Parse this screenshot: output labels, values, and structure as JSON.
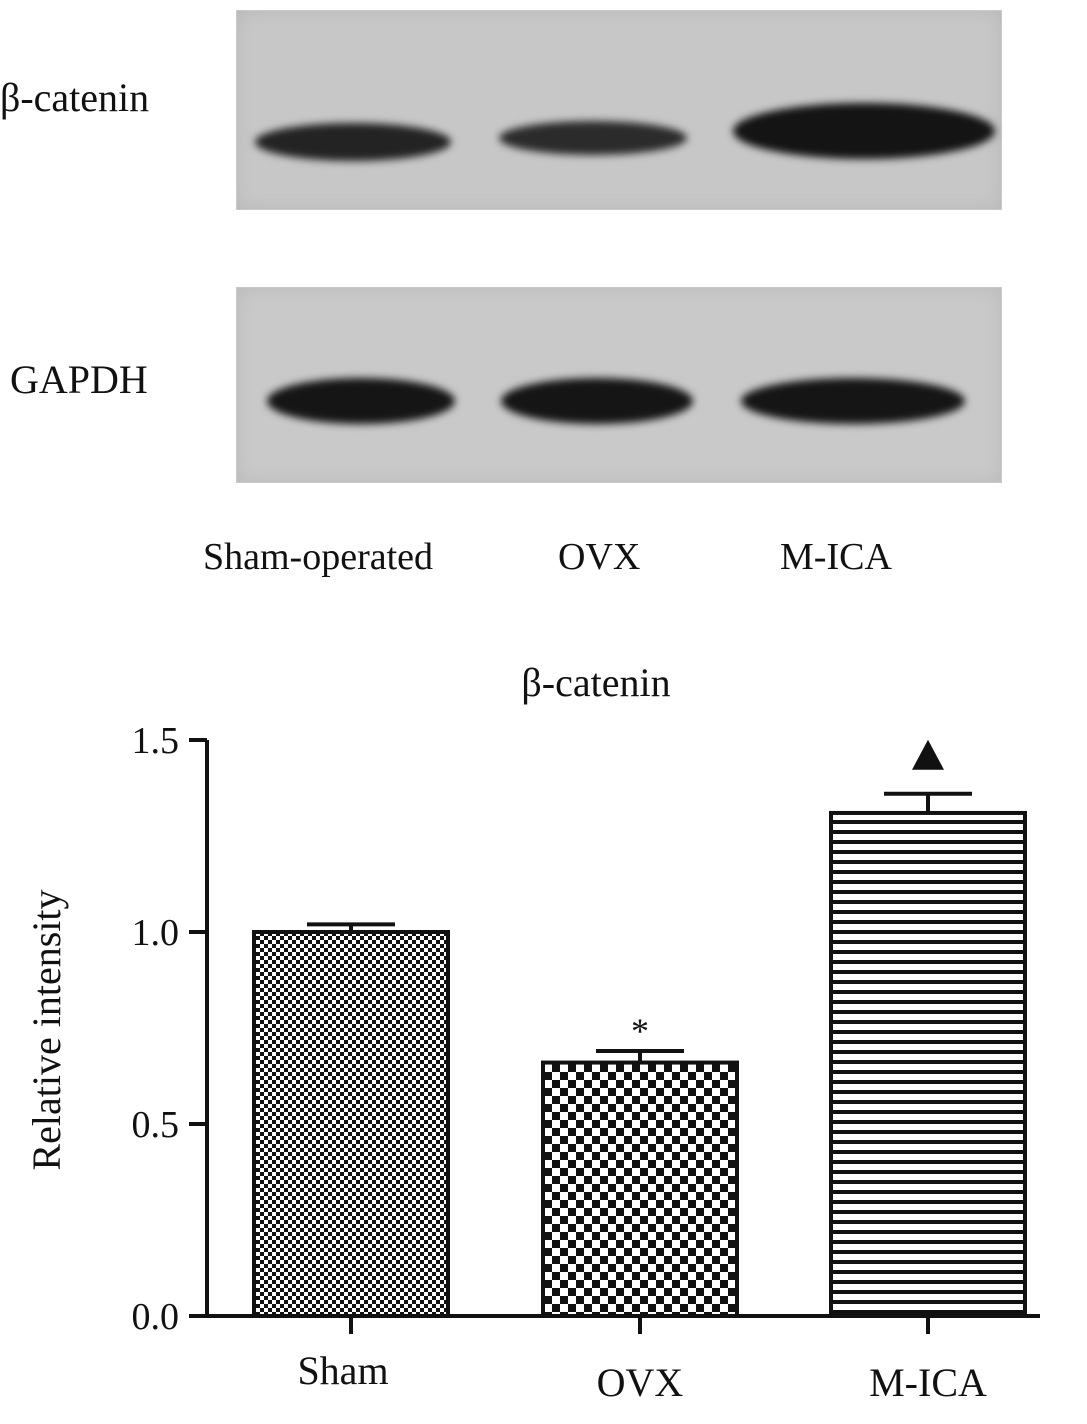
{
  "western_blot": {
    "rows": [
      {
        "label": "β-catenin",
        "band_intensity": [
          0.55,
          0.5,
          0.85
        ]
      },
      {
        "label": "GAPDH",
        "band_intensity": [
          0.9,
          0.9,
          0.9
        ]
      }
    ],
    "lanes": [
      "Sham-operated",
      "OVX",
      "M-ICA"
    ]
  },
  "chart_data": {
    "type": "bar",
    "title": "β-catenin",
    "xlabel": "",
    "ylabel": "Relative intensity",
    "categories": [
      "Sham",
      "OVX",
      "M-ICA"
    ],
    "values": [
      1.0,
      0.66,
      1.31
    ],
    "error_upper": [
      1.02,
      0.69,
      1.36
    ],
    "significance_marks": [
      "",
      "*",
      "▲"
    ],
    "ylim": [
      0.0,
      1.5
    ],
    "yticks": [
      "0.0",
      "0.5",
      "1.0",
      "1.5"
    ],
    "bar_patterns": [
      "dense-checker",
      "checker",
      "horizontal-stripes"
    ],
    "grid": false,
    "colors": {
      "ink": "#111111",
      "bar_fill": "#ffffff"
    }
  }
}
